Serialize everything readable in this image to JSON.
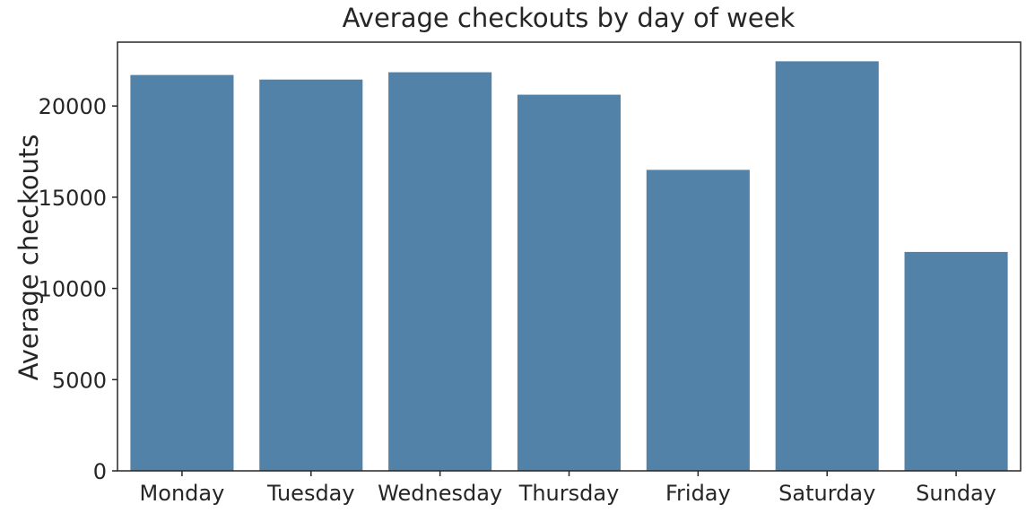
{
  "chart_data": {
    "type": "bar",
    "title": "Average checkouts by day of week",
    "xlabel": "",
    "ylabel": "Average checkouts",
    "categories": [
      "Monday",
      "Tuesday",
      "Wednesday",
      "Thursday",
      "Friday",
      "Saturday",
      "Sunday"
    ],
    "values": [
      21700,
      21450,
      21850,
      20620,
      16500,
      22450,
      12000
    ],
    "ylim": [
      0,
      23500
    ],
    "yticks": [
      0,
      5000,
      10000,
      15000,
      20000
    ],
    "ytick_labels": [
      "0",
      "5000",
      "10000",
      "15000",
      "20000"
    ],
    "grid": false,
    "bar_color": "#5282a7",
    "axis_color": "#262626"
  }
}
